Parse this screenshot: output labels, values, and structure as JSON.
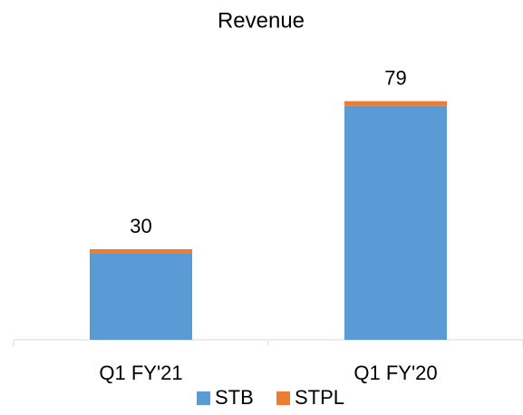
{
  "chart_data": {
    "type": "stacked_bar",
    "title": "Revenue",
    "categories": [
      "Q1 FY'21",
      "Q1 FY'20"
    ],
    "series": [
      {
        "name": "STB",
        "color": "#5b9bd5",
        "values": [
          28.5,
          77.5
        ]
      },
      {
        "name": "STPL",
        "color": "#ed7d31",
        "values": [
          1.5,
          1.5
        ]
      }
    ],
    "totals": [
      30,
      79
    ],
    "ylim": [
      0,
      90
    ],
    "grid": false,
    "legend": "bottom"
  }
}
